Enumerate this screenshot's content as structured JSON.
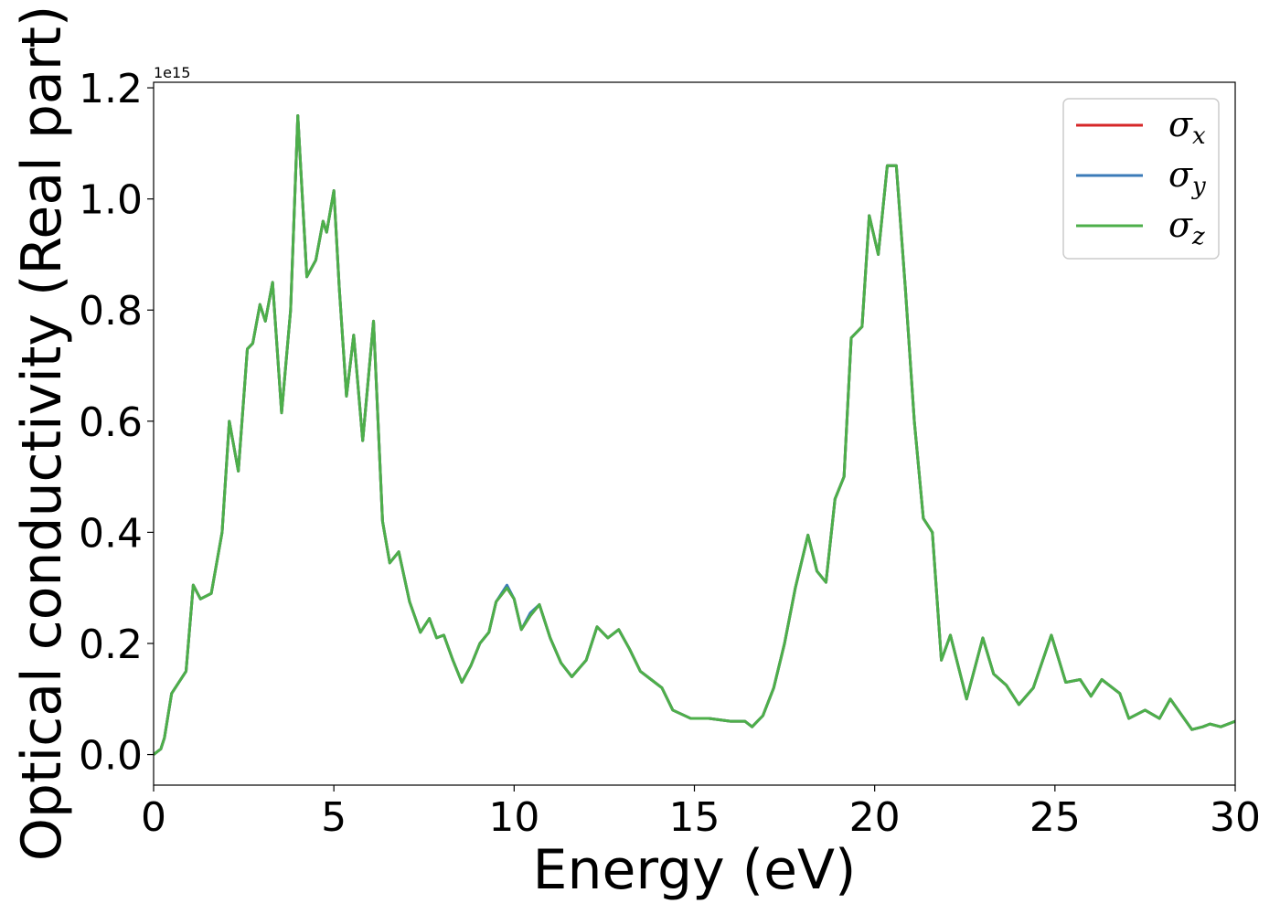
{
  "chart_data": {
    "type": "line",
    "xlabel": "Energy (eV)",
    "ylabel": "Optical conductivity (Real part)",
    "y_offset_label": "1e15",
    "xlim": [
      0,
      30
    ],
    "ylim": [
      -0.055,
      1.21
    ],
    "x_ticks": [
      0,
      5,
      10,
      15,
      20,
      25,
      30
    ],
    "x_tick_labels": [
      "0",
      "5",
      "10",
      "15",
      "20",
      "25",
      "30"
    ],
    "y_ticks": [
      0.0,
      0.2,
      0.4,
      0.6,
      0.8,
      1.0,
      1.2
    ],
    "y_tick_labels": [
      "0.0",
      "0.2",
      "0.4",
      "0.6",
      "0.8",
      "1.0",
      "1.2"
    ],
    "grid": false,
    "legend_position": "top-right",
    "series": [
      {
        "name": "σx",
        "symbol": "σ",
        "subscript": "x",
        "color": "#d62728",
        "x": [
          0,
          0.2,
          0.3,
          0.5,
          0.7,
          0.9,
          1.1,
          1.3,
          1.6,
          1.9,
          2.1,
          2.35,
          2.6,
          2.75,
          2.95,
          3.1,
          3.3,
          3.55,
          3.8,
          4.0,
          4.25,
          4.5,
          4.7,
          4.8,
          5.0,
          5.15,
          5.35,
          5.55,
          5.8,
          6.1,
          6.35,
          6.55,
          6.8,
          7.1,
          7.4,
          7.65,
          7.85,
          8.05,
          8.3,
          8.55,
          8.8,
          9.05,
          9.3,
          9.5,
          9.8,
          10.0,
          10.2,
          10.45,
          10.7,
          11.0,
          11.3,
          11.6,
          12.0,
          12.3,
          12.6,
          12.9,
          13.2,
          13.5,
          13.8,
          14.1,
          14.4,
          14.9,
          15.4,
          16.0,
          16.4,
          16.6,
          16.9,
          17.2,
          17.5,
          17.8,
          18.15,
          18.4,
          18.65,
          18.9,
          19.15,
          19.35,
          19.65,
          19.85,
          20.1,
          20.35,
          20.6,
          20.85,
          21.1,
          21.35,
          21.6,
          21.85,
          22.1,
          22.55,
          23.0,
          23.3,
          23.65,
          24.0,
          24.4,
          24.9,
          25.3,
          25.7,
          26.0,
          26.3,
          26.8,
          27.05,
          27.5,
          27.9,
          28.2,
          28.8,
          29.1,
          29.3,
          29.6,
          30.0
        ],
        "values": [
          0,
          0.01,
          0.03,
          0.11,
          0.13,
          0.15,
          0.305,
          0.28,
          0.29,
          0.4,
          0.6,
          0.51,
          0.73,
          0.74,
          0.81,
          0.78,
          0.85,
          0.615,
          0.8,
          1.15,
          0.86,
          0.89,
          0.96,
          0.94,
          1.015,
          0.84,
          0.645,
          0.755,
          0.565,
          0.78,
          0.42,
          0.345,
          0.365,
          0.275,
          0.22,
          0.245,
          0.21,
          0.215,
          0.17,
          0.13,
          0.16,
          0.2,
          0.22,
          0.275,
          0.3,
          0.28,
          0.225,
          0.25,
          0.27,
          0.21,
          0.165,
          0.14,
          0.17,
          0.23,
          0.21,
          0.225,
          0.19,
          0.15,
          0.135,
          0.12,
          0.08,
          0.065,
          0.065,
          0.06,
          0.06,
          0.05,
          0.07,
          0.12,
          0.2,
          0.3,
          0.395,
          0.33,
          0.31,
          0.46,
          0.5,
          0.75,
          0.77,
          0.97,
          0.9,
          1.06,
          1.06,
          0.84,
          0.6,
          0.425,
          0.4,
          0.17,
          0.215,
          0.1,
          0.21,
          0.145,
          0.125,
          0.09,
          0.12,
          0.215,
          0.13,
          0.135,
          0.105,
          0.135,
          0.11,
          0.065,
          0.08,
          0.065,
          0.1,
          0.045,
          0.05,
          0.055,
          0.05,
          0.06
        ]
      },
      {
        "name": "σy",
        "symbol": "σ",
        "subscript": "y",
        "color": "#3b7bb8",
        "x": [
          0,
          0.2,
          0.3,
          0.5,
          0.7,
          0.9,
          1.1,
          1.3,
          1.6,
          1.9,
          2.1,
          2.35,
          2.6,
          2.75,
          2.95,
          3.1,
          3.3,
          3.55,
          3.8,
          4.0,
          4.25,
          4.5,
          4.7,
          4.8,
          5.0,
          5.15,
          5.35,
          5.55,
          5.8,
          6.1,
          6.35,
          6.55,
          6.8,
          7.1,
          7.4,
          7.65,
          7.85,
          8.05,
          8.3,
          8.55,
          8.8,
          9.05,
          9.3,
          9.5,
          9.8,
          10.0,
          10.2,
          10.45,
          10.7,
          11.0,
          11.3,
          11.6,
          12.0,
          12.3,
          12.6,
          12.9,
          13.2,
          13.5,
          13.8,
          14.1,
          14.4,
          14.9,
          15.4,
          16.0,
          16.4,
          16.6,
          16.9,
          17.2,
          17.5,
          17.8,
          18.15,
          18.4,
          18.65,
          18.9,
          19.15,
          19.35,
          19.65,
          19.85,
          20.1,
          20.35,
          20.6,
          20.85,
          21.1,
          21.35,
          21.6,
          21.85,
          22.1,
          22.55,
          23.0,
          23.3,
          23.65,
          24.0,
          24.4,
          24.9,
          25.3,
          25.7,
          26.0,
          26.3,
          26.8,
          27.05,
          27.5,
          27.9,
          28.2,
          28.8,
          29.1,
          29.3,
          29.6,
          30.0
        ],
        "values": [
          0,
          0.01,
          0.03,
          0.11,
          0.13,
          0.15,
          0.305,
          0.28,
          0.29,
          0.4,
          0.6,
          0.51,
          0.73,
          0.74,
          0.81,
          0.78,
          0.85,
          0.615,
          0.8,
          1.15,
          0.86,
          0.89,
          0.96,
          0.94,
          1.015,
          0.84,
          0.645,
          0.755,
          0.565,
          0.78,
          0.42,
          0.345,
          0.365,
          0.275,
          0.22,
          0.245,
          0.21,
          0.215,
          0.17,
          0.13,
          0.16,
          0.2,
          0.22,
          0.275,
          0.305,
          0.28,
          0.225,
          0.255,
          0.27,
          0.21,
          0.165,
          0.14,
          0.17,
          0.23,
          0.21,
          0.225,
          0.19,
          0.15,
          0.135,
          0.12,
          0.08,
          0.065,
          0.065,
          0.06,
          0.06,
          0.05,
          0.07,
          0.12,
          0.2,
          0.3,
          0.395,
          0.33,
          0.31,
          0.46,
          0.5,
          0.75,
          0.77,
          0.97,
          0.9,
          1.06,
          1.06,
          0.84,
          0.6,
          0.425,
          0.4,
          0.17,
          0.215,
          0.1,
          0.21,
          0.145,
          0.125,
          0.09,
          0.12,
          0.215,
          0.13,
          0.135,
          0.105,
          0.135,
          0.11,
          0.065,
          0.08,
          0.065,
          0.1,
          0.045,
          0.05,
          0.055,
          0.05,
          0.06
        ]
      },
      {
        "name": "σz",
        "symbol": "σ",
        "subscript": "z",
        "color": "#4daf4a",
        "x": [
          0,
          0.2,
          0.3,
          0.5,
          0.7,
          0.9,
          1.1,
          1.3,
          1.6,
          1.9,
          2.1,
          2.35,
          2.6,
          2.75,
          2.95,
          3.1,
          3.3,
          3.55,
          3.8,
          4.0,
          4.25,
          4.5,
          4.7,
          4.8,
          5.0,
          5.15,
          5.35,
          5.55,
          5.8,
          6.1,
          6.35,
          6.55,
          6.8,
          7.1,
          7.4,
          7.65,
          7.85,
          8.05,
          8.3,
          8.55,
          8.8,
          9.05,
          9.3,
          9.5,
          9.8,
          10.0,
          10.2,
          10.45,
          10.7,
          11.0,
          11.3,
          11.6,
          12.0,
          12.3,
          12.6,
          12.9,
          13.2,
          13.5,
          13.8,
          14.1,
          14.4,
          14.9,
          15.4,
          16.0,
          16.4,
          16.6,
          16.9,
          17.2,
          17.5,
          17.8,
          18.15,
          18.4,
          18.65,
          18.9,
          19.15,
          19.35,
          19.65,
          19.85,
          20.1,
          20.35,
          20.6,
          20.85,
          21.1,
          21.35,
          21.6,
          21.85,
          22.1,
          22.55,
          23.0,
          23.3,
          23.65,
          24.0,
          24.4,
          24.9,
          25.3,
          25.7,
          26.0,
          26.3,
          26.8,
          27.05,
          27.5,
          27.9,
          28.2,
          28.8,
          29.1,
          29.3,
          29.6,
          30.0
        ],
        "values": [
          0,
          0.01,
          0.03,
          0.11,
          0.13,
          0.15,
          0.305,
          0.28,
          0.29,
          0.4,
          0.6,
          0.51,
          0.73,
          0.74,
          0.81,
          0.78,
          0.85,
          0.615,
          0.8,
          1.15,
          0.86,
          0.89,
          0.96,
          0.94,
          1.015,
          0.84,
          0.645,
          0.755,
          0.565,
          0.78,
          0.42,
          0.345,
          0.365,
          0.275,
          0.22,
          0.245,
          0.21,
          0.215,
          0.17,
          0.13,
          0.16,
          0.2,
          0.22,
          0.275,
          0.3,
          0.28,
          0.225,
          0.25,
          0.27,
          0.21,
          0.165,
          0.14,
          0.17,
          0.23,
          0.21,
          0.225,
          0.19,
          0.15,
          0.135,
          0.12,
          0.08,
          0.065,
          0.065,
          0.06,
          0.06,
          0.05,
          0.07,
          0.12,
          0.2,
          0.3,
          0.395,
          0.33,
          0.31,
          0.46,
          0.5,
          0.75,
          0.77,
          0.97,
          0.9,
          1.06,
          1.06,
          0.84,
          0.6,
          0.425,
          0.4,
          0.17,
          0.215,
          0.1,
          0.21,
          0.145,
          0.125,
          0.09,
          0.12,
          0.215,
          0.13,
          0.135,
          0.105,
          0.135,
          0.11,
          0.065,
          0.08,
          0.065,
          0.1,
          0.045,
          0.05,
          0.055,
          0.05,
          0.06
        ]
      }
    ]
  }
}
